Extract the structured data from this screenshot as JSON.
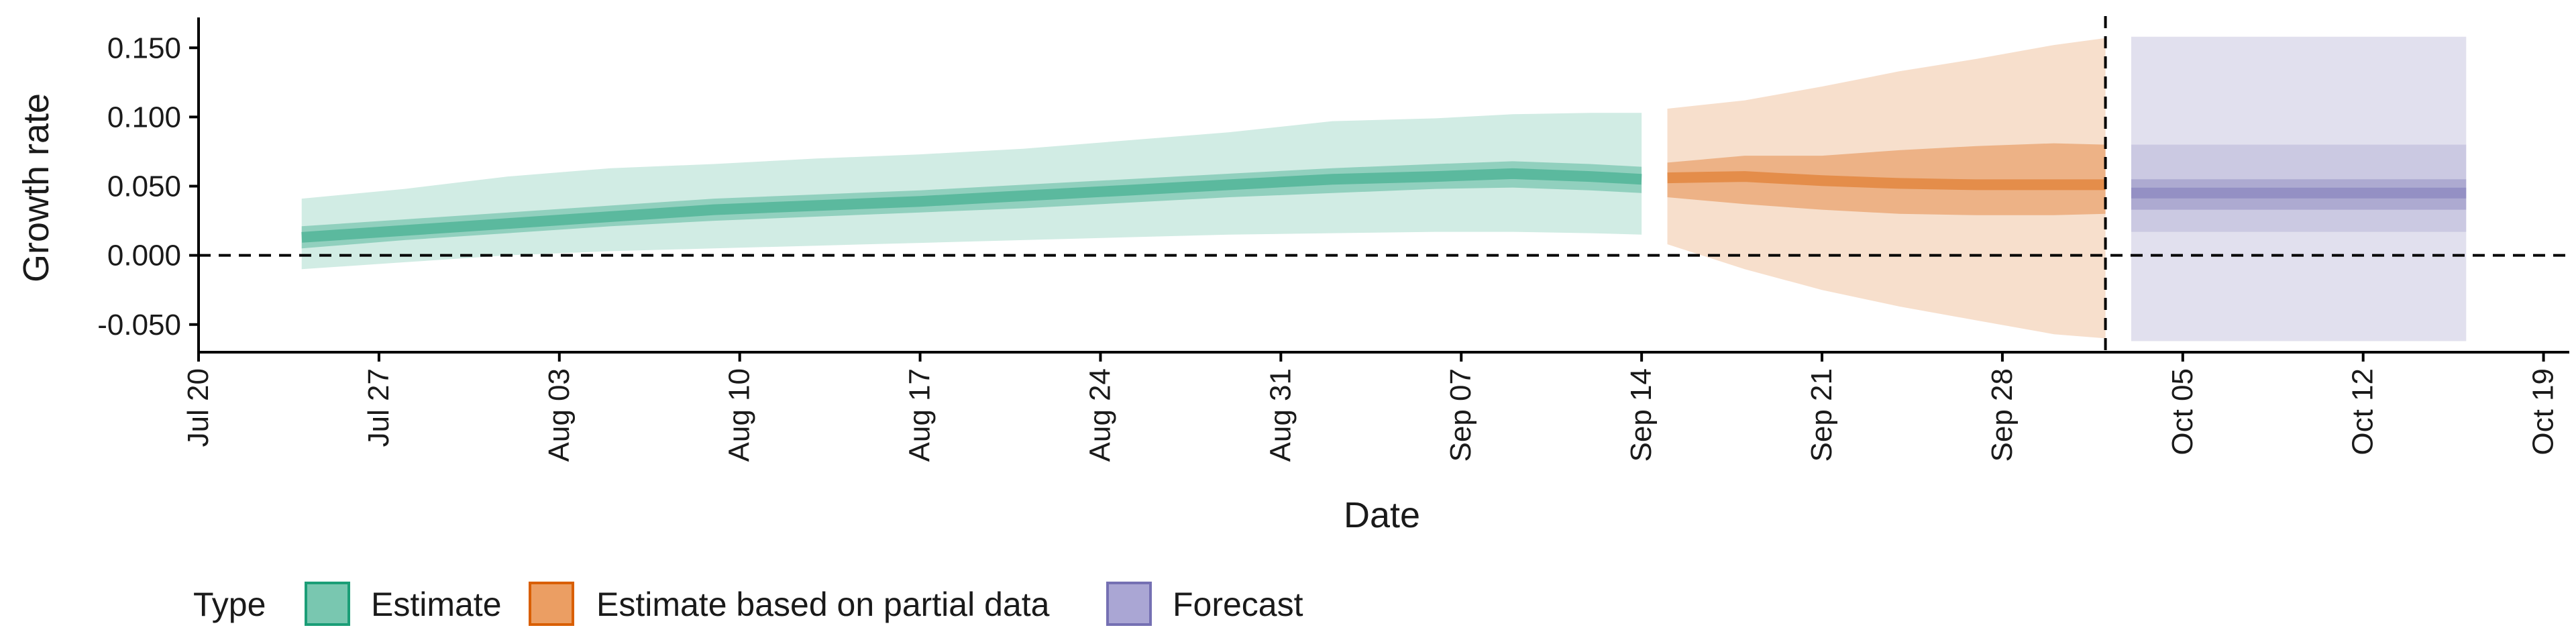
{
  "chart_data": {
    "type": "area",
    "xlabel": "Date",
    "ylabel": "Growth rate",
    "x_range": [
      "2020-07-20",
      "2020-10-20"
    ],
    "ylim": [
      -0.07,
      0.17
    ],
    "y_ticks": [
      -0.05,
      0.0,
      0.05,
      0.1,
      0.15
    ],
    "y_tick_labels": [
      "-0.050",
      "0.000",
      "0.050",
      "0.100",
      "0.150"
    ],
    "x_ticks": [
      "2020-07-20",
      "2020-07-27",
      "2020-08-03",
      "2020-08-10",
      "2020-08-17",
      "2020-08-24",
      "2020-08-31",
      "2020-09-07",
      "2020-09-14",
      "2020-09-21",
      "2020-09-28",
      "2020-10-05",
      "2020-10-12",
      "2020-10-19"
    ],
    "x_tick_labels": [
      "Jul 20",
      "Jul 27",
      "Aug 03",
      "Aug 10",
      "Aug 17",
      "Aug 24",
      "Aug 31",
      "Sep 07",
      "Sep 14",
      "Sep 21",
      "Sep 28",
      "Oct 05",
      "Oct 12",
      "Oct 19"
    ],
    "reference_line_y": 0.0,
    "vertical_line_x": "2020-10-02",
    "grid": false,
    "legend": {
      "title": "Type",
      "placement": "bottom",
      "items": [
        {
          "label": "Estimate",
          "color": "#1b9e77"
        },
        {
          "label": "Estimate based on partial data",
          "color": "#d95f02"
        },
        {
          "label": "Forecast",
          "color": "#7570b3"
        }
      ]
    },
    "series": [
      {
        "type": "Estimate",
        "color": "#1b9e77",
        "dates": [
          "2020-07-24",
          "2020-07-28",
          "2020-08-01",
          "2020-08-05",
          "2020-08-09",
          "2020-08-13",
          "2020-08-17",
          "2020-08-21",
          "2020-08-25",
          "2020-08-29",
          "2020-09-02",
          "2020-09-06",
          "2020-09-09",
          "2020-09-12",
          "2020-09-14"
        ],
        "median": [
          0.013,
          0.018,
          0.023,
          0.028,
          0.033,
          0.036,
          0.039,
          0.043,
          0.047,
          0.051,
          0.055,
          0.057,
          0.059,
          0.057,
          0.055
        ],
        "lower_50": [
          0.005,
          0.011,
          0.016,
          0.021,
          0.025,
          0.028,
          0.031,
          0.034,
          0.038,
          0.042,
          0.045,
          0.048,
          0.049,
          0.047,
          0.045
        ],
        "upper_50": [
          0.021,
          0.026,
          0.031,
          0.036,
          0.041,
          0.044,
          0.047,
          0.051,
          0.055,
          0.059,
          0.063,
          0.066,
          0.068,
          0.066,
          0.064
        ],
        "lower_90": [
          -0.01,
          -0.005,
          0.0,
          0.003,
          0.005,
          0.007,
          0.009,
          0.011,
          0.013,
          0.015,
          0.016,
          0.017,
          0.017,
          0.016,
          0.015
        ],
        "upper_90": [
          0.041,
          0.048,
          0.057,
          0.063,
          0.066,
          0.07,
          0.073,
          0.077,
          0.083,
          0.089,
          0.097,
          0.099,
          0.102,
          0.103,
          0.103
        ]
      },
      {
        "type": "Estimate based on partial data",
        "color": "#d95f02",
        "dates": [
          "2020-09-15",
          "2020-09-18",
          "2020-09-21",
          "2020-09-24",
          "2020-09-27",
          "2020-09-30",
          "2020-10-02"
        ],
        "median": [
          0.056,
          0.057,
          0.054,
          0.052,
          0.051,
          0.051,
          0.051
        ],
        "lower_50": [
          0.042,
          0.037,
          0.033,
          0.03,
          0.029,
          0.029,
          0.03
        ],
        "upper_50": [
          0.067,
          0.072,
          0.072,
          0.076,
          0.079,
          0.081,
          0.08
        ],
        "lower_90": [
          0.008,
          -0.01,
          -0.025,
          -0.037,
          -0.047,
          -0.057,
          -0.06
        ],
        "upper_90": [
          0.106,
          0.112,
          0.122,
          0.133,
          0.142,
          0.152,
          0.157
        ]
      },
      {
        "type": "Forecast",
        "color": "#7570b3",
        "dates": [
          "2020-10-03",
          "2020-10-16"
        ],
        "median": [
          0.045,
          0.045
        ],
        "lower_50": [
          0.033,
          0.033
        ],
        "upper_50": [
          0.055,
          0.055
        ],
        "lower_90": [
          0.017,
          0.017
        ],
        "upper_90": [
          0.08,
          0.08
        ],
        "lower_max": [
          -0.062,
          -0.062
        ],
        "upper_max": [
          0.158,
          0.158
        ]
      }
    ]
  }
}
